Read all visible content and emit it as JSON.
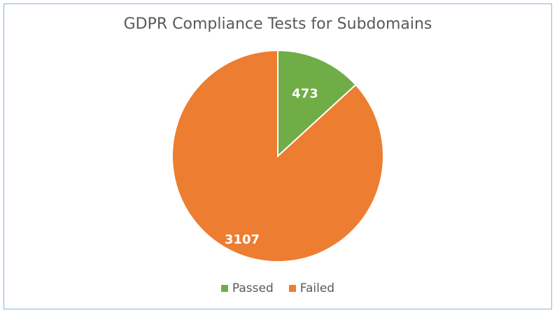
{
  "chart_data": {
    "type": "pie",
    "title": "GDPR Compliance Tests for Subdomains",
    "categories": [
      "Passed",
      "Failed"
    ],
    "values": [
      473,
      3107
    ],
    "colors": [
      "#70ad47",
      "#ed7d31"
    ],
    "data_labels": [
      "473",
      "3107"
    ],
    "legend_position": "bottom",
    "start_angle": "12 o'clock, clockwise"
  }
}
